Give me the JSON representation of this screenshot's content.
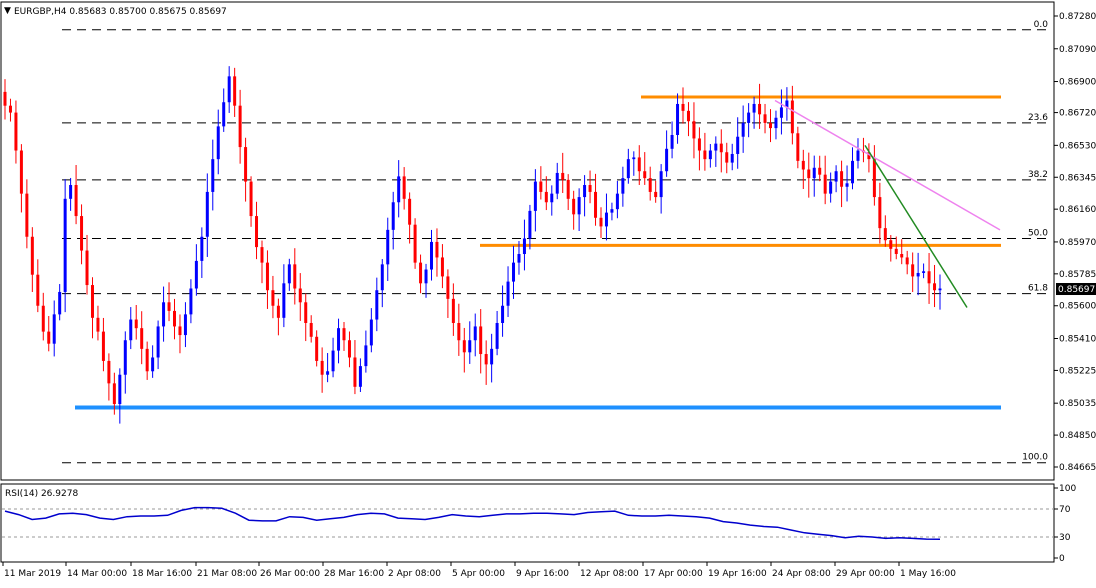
{
  "header": {
    "symbol_line": "EURGBP,H4  0.85683 0.85700 0.85675 0.85697"
  },
  "rsi_header": "RSI(14) 26.9278",
  "last_price_tag": "0.85697",
  "colors": {
    "bull": "#0000ff",
    "bear": "#ff0000",
    "fib": "#000000",
    "orange": "#ff8c00",
    "support_blue": "#1e90ff",
    "pink": "#ee82ee",
    "green": "#228b22",
    "rsi": "#0000cd"
  },
  "chart_data": [
    {
      "type": "candlestick",
      "title": "EURGBP,H4",
      "ohlc_header": [
        "0.85683",
        "0.85700",
        "0.85675",
        "0.85697"
      ],
      "y_ticks": [
        "0.87280",
        "0.87090",
        "0.86900",
        "0.86720",
        "0.86530",
        "0.86345",
        "0.86160",
        "0.85970",
        "0.85785",
        "0.85600",
        "0.85410",
        "0.85225",
        "0.85035",
        "0.84850",
        "0.84665"
      ],
      "ylim": [
        0.84665,
        0.8728
      ],
      "x_ticks": [
        "11 Mar 2019",
        "14 Mar 00:00",
        "18 Mar 16:00",
        "21 Mar 08:00",
        "26 Mar 00:00",
        "28 Mar 16:00",
        "2 Apr 08:00",
        "5 Apr 00:00",
        "9 Apr 16:00",
        "12 Apr 08:00",
        "17 Apr 00:00",
        "19 Apr 16:00",
        "24 Apr 08:00",
        "29 Apr 00:00",
        "1 May 16:00"
      ],
      "fibonacci_levels": [
        {
          "label": "0.0",
          "price": 0.872
        },
        {
          "label": "23.6",
          "price": 0.8666
        },
        {
          "label": "38.2",
          "price": 0.8633
        },
        {
          "label": "50.0",
          "price": 0.8599
        },
        {
          "label": "61.8",
          "price": 0.8567
        },
        {
          "label": "100.0",
          "price": 0.8469
        }
      ],
      "horizontal_levels": [
        {
          "name": "resistance",
          "price": 0.8681,
          "color": "orange"
        },
        {
          "name": "support",
          "price": 0.8595,
          "color": "orange"
        },
        {
          "name": "support",
          "price": 0.8501,
          "color": "support_blue"
        }
      ],
      "trend_lines": [
        {
          "color": "pink",
          "from": [
            "24 Apr 08:00",
            0.8679
          ],
          "to": [
            "May",
            0.8604
          ]
        },
        {
          "color": "green",
          "from": [
            "29 Apr 00:00",
            0.8653
          ],
          "to": [
            "May",
            0.8559
          ]
        }
      ],
      "close_path": [
        0.8676,
        0.8672,
        0.865,
        0.8625,
        0.86,
        0.8578,
        0.856,
        0.8545,
        0.8538,
        0.8555,
        0.8568,
        0.8622,
        0.863,
        0.8612,
        0.8592,
        0.8572,
        0.8553,
        0.8545,
        0.8528,
        0.8515,
        0.8503,
        0.852,
        0.854,
        0.8552,
        0.8547,
        0.8535,
        0.8522,
        0.853,
        0.8548,
        0.8562,
        0.8557,
        0.8548,
        0.8543,
        0.8555,
        0.857,
        0.8586,
        0.86,
        0.8626,
        0.8645,
        0.8664,
        0.8678,
        0.8693,
        0.8676,
        0.8652,
        0.8632,
        0.8612,
        0.8594,
        0.8585,
        0.8569,
        0.856,
        0.8553,
        0.8573,
        0.8584,
        0.857,
        0.8562,
        0.855,
        0.8542,
        0.8528,
        0.852,
        0.8522,
        0.8534,
        0.8547,
        0.854,
        0.853,
        0.8513,
        0.8525,
        0.8537,
        0.8552,
        0.8569,
        0.8584,
        0.8604,
        0.862,
        0.8635,
        0.8622,
        0.8607,
        0.8585,
        0.8573,
        0.8581,
        0.8597,
        0.8588,
        0.8577,
        0.8564,
        0.855,
        0.854,
        0.8533,
        0.854,
        0.8548,
        0.8532,
        0.8526,
        0.8535,
        0.855,
        0.856,
        0.8574,
        0.8585,
        0.859,
        0.8599,
        0.8615,
        0.8632,
        0.8626,
        0.862,
        0.8625,
        0.8637,
        0.8633,
        0.8622,
        0.8613,
        0.8623,
        0.863,
        0.8626,
        0.8611,
        0.8606,
        0.8614,
        0.8616,
        0.8625,
        0.8634,
        0.8645,
        0.8646,
        0.8638,
        0.8634,
        0.8626,
        0.8623,
        0.8638,
        0.8651,
        0.8659,
        0.8677,
        0.8673,
        0.8667,
        0.8657,
        0.865,
        0.8645,
        0.865,
        0.8654,
        0.8649,
        0.8643,
        0.8648,
        0.8658,
        0.8666,
        0.8672,
        0.8677,
        0.8671,
        0.8666,
        0.8663,
        0.8669,
        0.8675,
        0.8679,
        0.866,
        0.8644,
        0.8639,
        0.8634,
        0.864,
        0.8636,
        0.8625,
        0.8632,
        0.8638,
        0.8629,
        0.8631,
        0.8644,
        0.865,
        0.8649,
        0.8645,
        0.8623,
        0.8605,
        0.8598,
        0.8593,
        0.859,
        0.8588,
        0.8584,
        0.8577,
        0.8579,
        0.858,
        0.8573,
        0.8569,
        0.857
      ]
    },
    {
      "type": "line",
      "title": "RSI(14)",
      "current_value": "26.9278",
      "y_ticks": [
        "100",
        "70",
        "30",
        "0"
      ],
      "ylim": [
        0,
        100
      ],
      "levels": [
        70,
        30
      ],
      "values": [
        67,
        62,
        55,
        57,
        63,
        64,
        62,
        57,
        55,
        59,
        60,
        60,
        61,
        68,
        72,
        72,
        71,
        64,
        54,
        53,
        53,
        59,
        58,
        54,
        56,
        58,
        62,
        64,
        63,
        57,
        56,
        55,
        58,
        62,
        60,
        59,
        61,
        63,
        63,
        64,
        64,
        63,
        62,
        65,
        66,
        67,
        61,
        60,
        60,
        61,
        60,
        59,
        57,
        52,
        50,
        47,
        45,
        44,
        40,
        36,
        34,
        32,
        29,
        31,
        30,
        28,
        29,
        28,
        27,
        26.9
      ]
    }
  ]
}
